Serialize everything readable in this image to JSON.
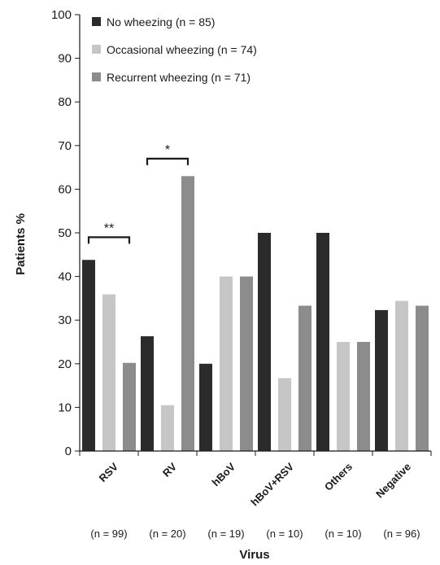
{
  "chart_data": {
    "type": "bar",
    "categories": [
      "RSV",
      "RV",
      "hBoV",
      "hBoV+RSV",
      "Others",
      "Negative"
    ],
    "category_counts": [
      "(n = 99)",
      "(n = 20)",
      "(n = 19)",
      "(n = 10)",
      "(n = 10)",
      "(n = 96)"
    ],
    "series": [
      {
        "name": "No wheezing (n = 85)",
        "color": "#2b2b2b",
        "values": [
          43.8,
          26.3,
          20.0,
          50.0,
          50.0,
          32.3
        ]
      },
      {
        "name": "Occasional wheezing (n = 74)",
        "color": "#c6c6c6",
        "values": [
          35.9,
          10.5,
          40.0,
          16.7,
          25.0,
          34.4
        ]
      },
      {
        "name": "Recurrent wheezing (n = 71)",
        "color": "#8c8c8c",
        "values": [
          20.2,
          63.0,
          40.0,
          33.3,
          25.0,
          33.3
        ]
      }
    ],
    "ylabel": "Patients %",
    "xlabel": "Virus",
    "ylim": [
      0,
      100
    ],
    "yticks": [
      0,
      10,
      20,
      30,
      40,
      50,
      60,
      70,
      80,
      90,
      100
    ],
    "grid": false,
    "legend_position": "top-left",
    "significance": [
      {
        "category": "RSV",
        "label": "**",
        "from_series": 0,
        "to_series": 2,
        "y": 49
      },
      {
        "category": "RV",
        "label": "*",
        "from_series": 0,
        "to_series": 2,
        "y": 67
      }
    ]
  }
}
